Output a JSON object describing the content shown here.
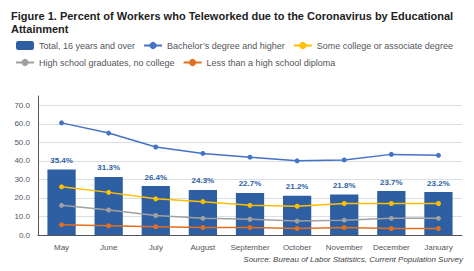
{
  "chart_data": {
    "type": "bar",
    "title": "Figure 1. Percent of Workers who Teleworked due to the Coronavirus by Educational Attainment",
    "annotations": [
      "Source: Bureau of Labor Statistics, Current Population Survey"
    ],
    "categories": [
      "May",
      "June",
      "July",
      "August",
      "September",
      "October",
      "November",
      "December",
      "January"
    ],
    "series": [
      {
        "name": "Total, 16 years and over",
        "type": "bar",
        "color": "#2E5FA3",
        "values": [
          35.4,
          31.3,
          26.4,
          24.3,
          22.7,
          21.2,
          21.8,
          23.7,
          23.2
        ],
        "data_labels": true,
        "value_labels": [
          "35.4%",
          "31.3%",
          "26.4%",
          "24.3%",
          "22.7%",
          "21.2%",
          "21.8%",
          "23.7%",
          "23.2%"
        ]
      },
      {
        "name": "Bachelor’s degree and higher",
        "type": "line",
        "marker": "circle",
        "color": "#4472C4",
        "values": [
          60.5,
          55.0,
          47.5,
          44.0,
          42.0,
          40.0,
          40.5,
          43.5,
          43.0
        ]
      },
      {
        "name": "Some college or associate degree",
        "type": "line",
        "marker": "circle",
        "color": "#FFC000",
        "values": [
          26.0,
          23.0,
          19.5,
          18.0,
          16.0,
          15.5,
          17.0,
          17.0,
          17.0
        ]
      },
      {
        "name": "High school graduates, no college",
        "type": "line",
        "marker": "circle",
        "color": "#A0A0A0",
        "values": [
          16.0,
          13.5,
          10.5,
          9.0,
          8.5,
          7.5,
          8.0,
          9.0,
          9.0
        ]
      },
      {
        "name": "Less than a high school diploma",
        "type": "line",
        "marker": "circle",
        "color": "#E07020",
        "values": [
          5.5,
          5.0,
          4.5,
          4.0,
          4.0,
          3.5,
          4.0,
          3.5,
          3.5
        ]
      }
    ],
    "ylim": [
      0,
      75
    ],
    "yticks": [
      {
        "value": 0,
        "label": "0.0"
      },
      {
        "value": 10,
        "label": "10.0"
      },
      {
        "value": 20,
        "label": "20.0"
      },
      {
        "value": 30,
        "label": "30.0"
      },
      {
        "value": 40,
        "label": "40.0"
      },
      {
        "value": 50,
        "label": "50.0"
      },
      {
        "value": 60,
        "label": "60.0"
      },
      {
        "value": 70,
        "label": "70.0"
      }
    ],
    "grid": true,
    "legend": "top"
  }
}
